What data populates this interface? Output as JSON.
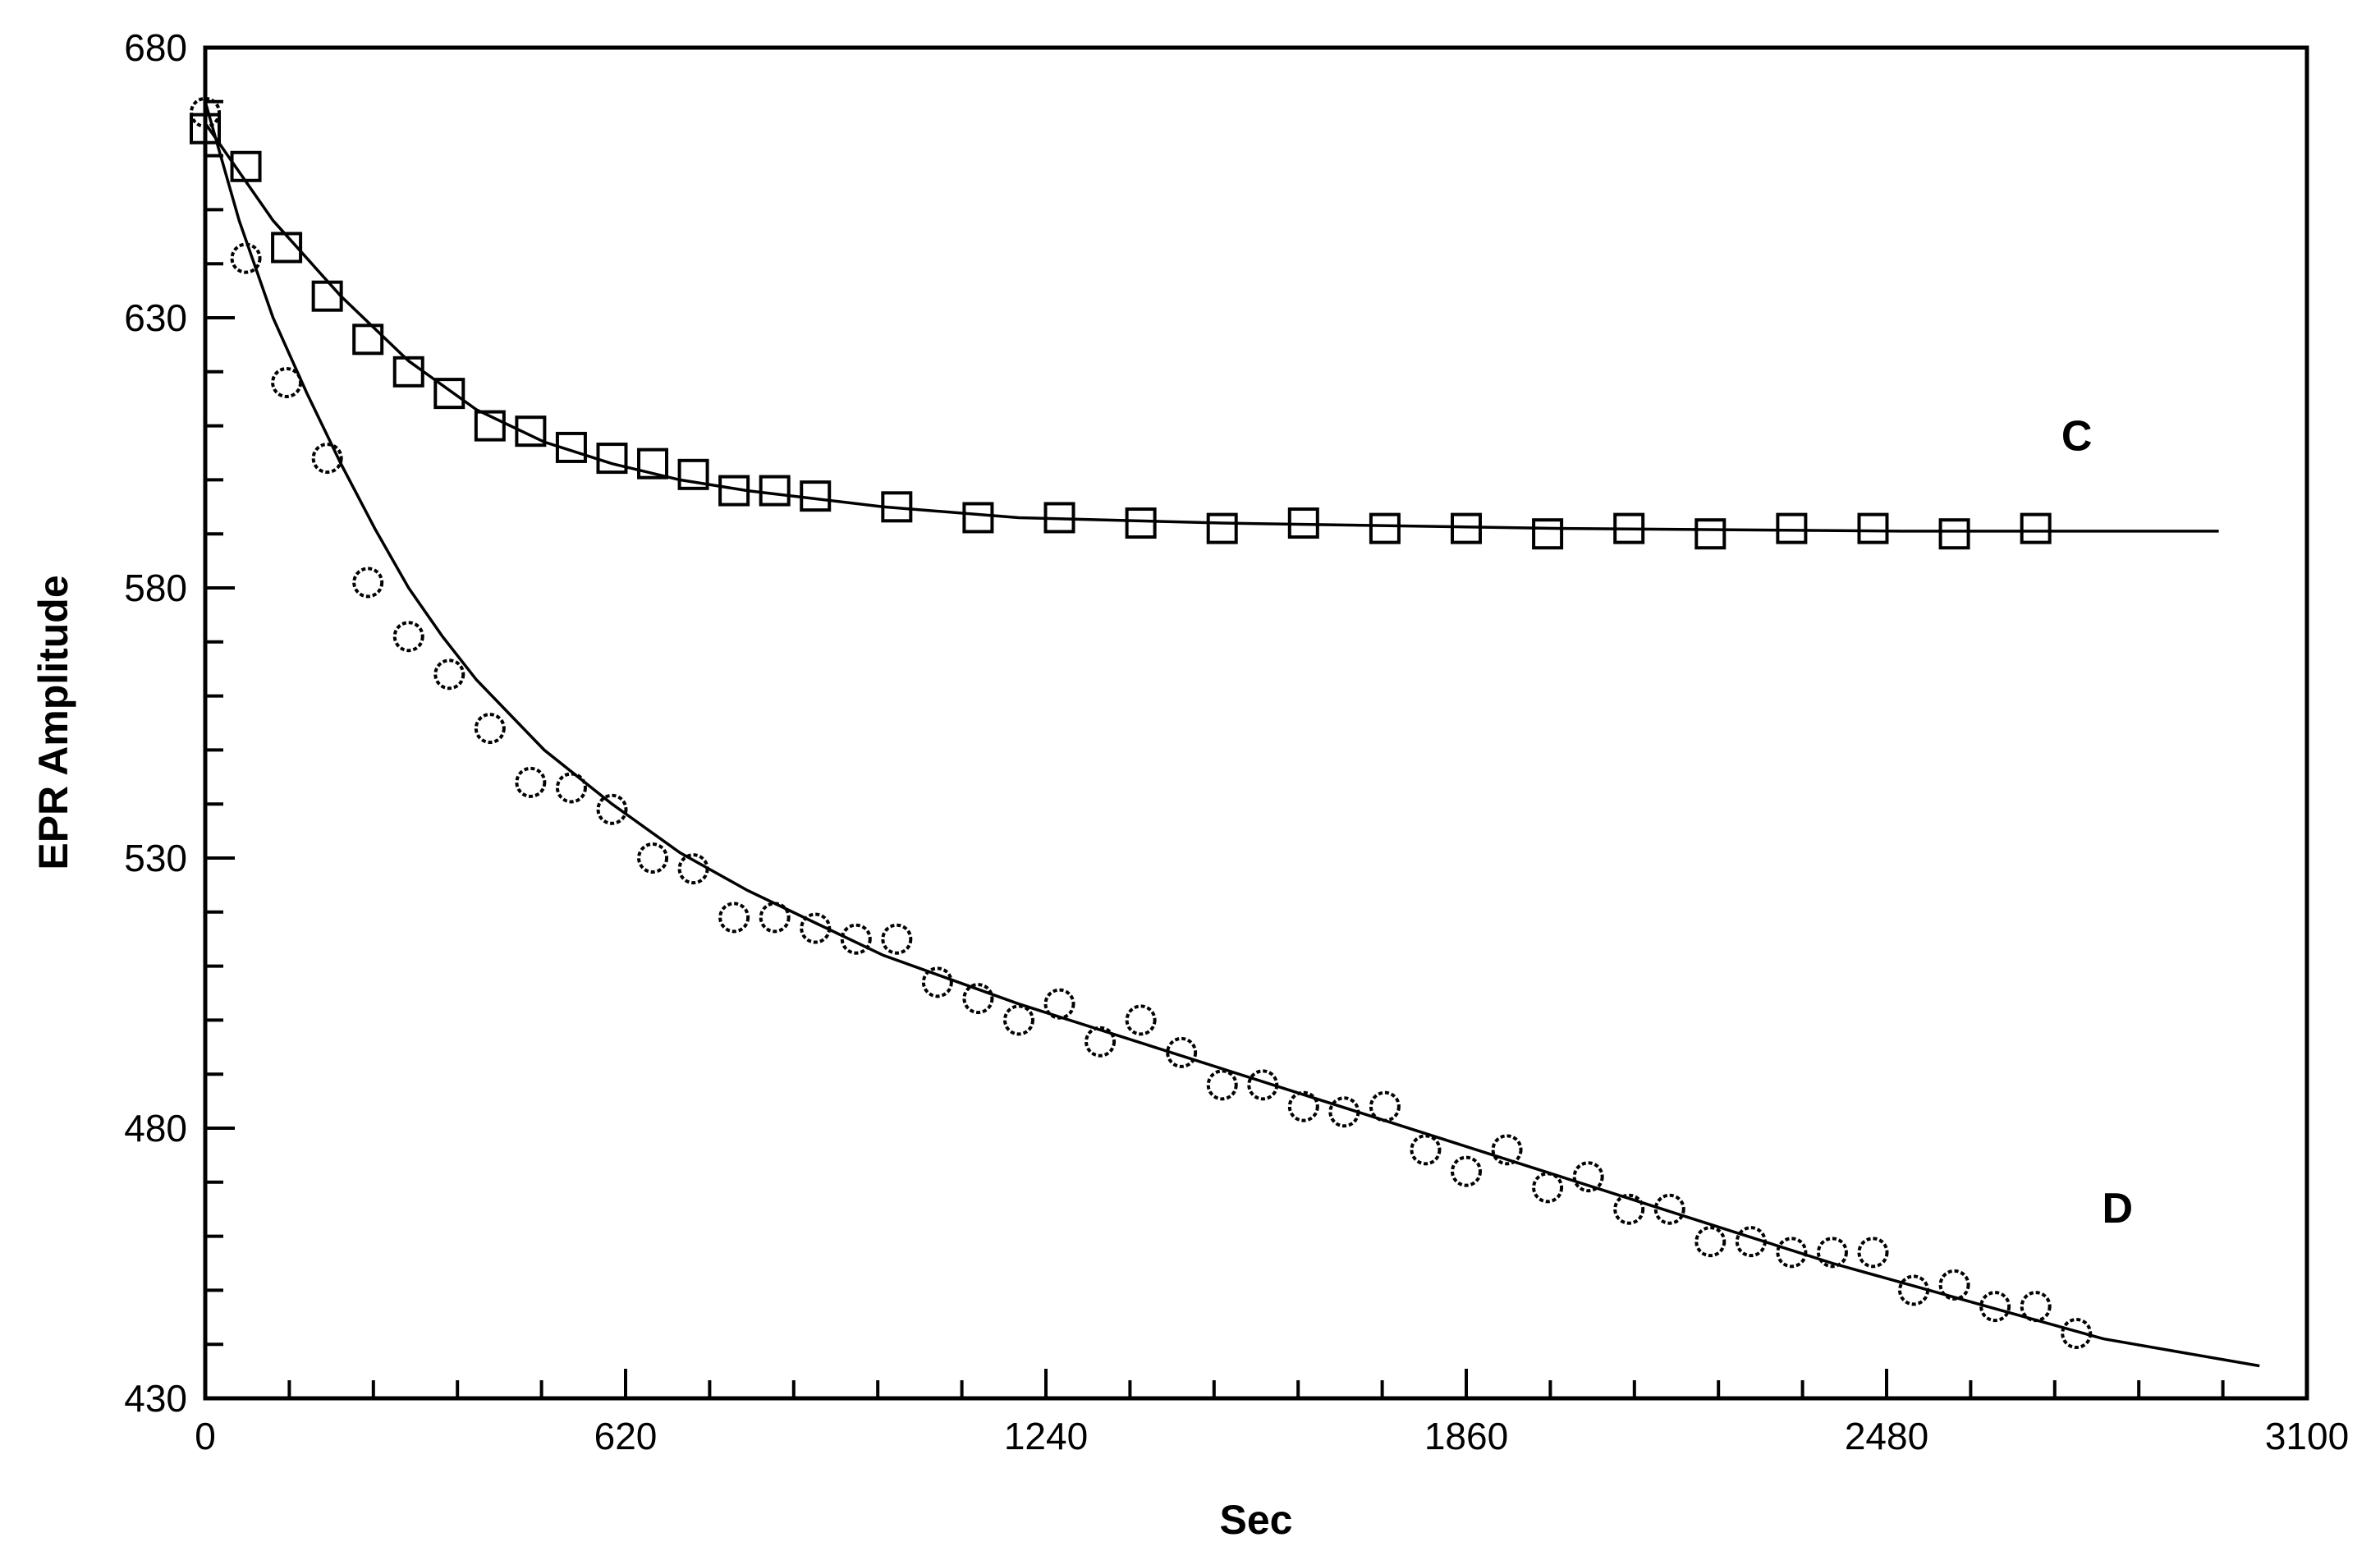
{
  "chart_data": {
    "type": "scatter",
    "title": "",
    "xlabel": "Sec",
    "ylabel": "EPR Amplitude",
    "xlim": [
      0,
      3100
    ],
    "ylim": [
      430,
      680
    ],
    "x_ticks": [
      0,
      620,
      1240,
      1860,
      2480,
      3100
    ],
    "y_ticks": [
      430,
      480,
      530,
      580,
      630,
      680
    ],
    "x_minor_step": 124,
    "y_minor_step": 10,
    "grid": false,
    "series": [
      {
        "name": "C",
        "marker": "square",
        "points": [
          [
            0,
            665
          ],
          [
            60,
            658
          ],
          [
            120,
            643
          ],
          [
            180,
            634
          ],
          [
            240,
            626
          ],
          [
            300,
            620
          ],
          [
            360,
            616
          ],
          [
            420,
            610
          ],
          [
            480,
            609
          ],
          [
            540,
            606
          ],
          [
            600,
            604
          ],
          [
            660,
            603
          ],
          [
            720,
            601
          ],
          [
            780,
            598
          ],
          [
            840,
            598
          ],
          [
            900,
            597
          ],
          [
            1020,
            595
          ],
          [
            1140,
            593
          ],
          [
            1260,
            593
          ],
          [
            1380,
            592
          ],
          [
            1500,
            591
          ],
          [
            1620,
            592
          ],
          [
            1740,
            591
          ],
          [
            1860,
            591
          ],
          [
            1980,
            590
          ],
          [
            2100,
            591
          ],
          [
            2220,
            590
          ],
          [
            2340,
            591
          ],
          [
            2460,
            591
          ],
          [
            2580,
            590
          ],
          [
            2700,
            591
          ]
        ],
        "fit": [
          [
            0,
            666
          ],
          [
            100,
            648
          ],
          [
            200,
            634
          ],
          [
            300,
            622
          ],
          [
            400,
            613
          ],
          [
            500,
            607
          ],
          [
            600,
            603
          ],
          [
            700,
            600
          ],
          [
            800,
            598
          ],
          [
            1000,
            595
          ],
          [
            1200,
            593
          ],
          [
            1500,
            592
          ],
          [
            2000,
            591
          ],
          [
            2500,
            590.5
          ],
          [
            2970,
            590.5
          ]
        ]
      },
      {
        "name": "D",
        "marker": "circle",
        "points": [
          [
            0,
            668
          ],
          [
            60,
            641
          ],
          [
            120,
            618
          ],
          [
            180,
            604
          ],
          [
            240,
            581
          ],
          [
            300,
            571
          ],
          [
            360,
            564
          ],
          [
            420,
            554
          ],
          [
            480,
            544
          ],
          [
            540,
            543
          ],
          [
            600,
            539
          ],
          [
            660,
            530
          ],
          [
            720,
            528
          ],
          [
            780,
            519
          ],
          [
            840,
            519
          ],
          [
            900,
            517
          ],
          [
            960,
            515
          ],
          [
            1020,
            515
          ],
          [
            1080,
            507
          ],
          [
            1140,
            504
          ],
          [
            1200,
            500
          ],
          [
            1260,
            503
          ],
          [
            1320,
            496
          ],
          [
            1380,
            500
          ],
          [
            1440,
            494
          ],
          [
            1500,
            488
          ],
          [
            1560,
            488
          ],
          [
            1620,
            484
          ],
          [
            1680,
            483
          ],
          [
            1740,
            484
          ],
          [
            1800,
            476
          ],
          [
            1860,
            472
          ],
          [
            1920,
            476
          ],
          [
            1980,
            469
          ],
          [
            2040,
            471
          ],
          [
            2100,
            465
          ],
          [
            2160,
            465
          ],
          [
            2220,
            459
          ],
          [
            2280,
            459
          ],
          [
            2340,
            457
          ],
          [
            2400,
            457
          ],
          [
            2460,
            457
          ],
          [
            2520,
            450
          ],
          [
            2580,
            451
          ],
          [
            2640,
            447
          ],
          [
            2700,
            447
          ],
          [
            2760,
            442
          ]
        ],
        "fit": [
          [
            0,
            670
          ],
          [
            50,
            648
          ],
          [
            100,
            630
          ],
          [
            150,
            616
          ],
          [
            200,
            603
          ],
          [
            250,
            591
          ],
          [
            300,
            580
          ],
          [
            350,
            571
          ],
          [
            400,
            563
          ],
          [
            500,
            550
          ],
          [
            600,
            540
          ],
          [
            700,
            531
          ],
          [
            800,
            524
          ],
          [
            900,
            518
          ],
          [
            1000,
            512
          ],
          [
            1200,
            503
          ],
          [
            1400,
            495
          ],
          [
            1600,
            487
          ],
          [
            1800,
            479
          ],
          [
            2000,
            471
          ],
          [
            2200,
            463
          ],
          [
            2400,
            455
          ],
          [
            2600,
            448
          ],
          [
            2800,
            441
          ],
          [
            3030,
            436
          ]
        ]
      }
    ]
  }
}
